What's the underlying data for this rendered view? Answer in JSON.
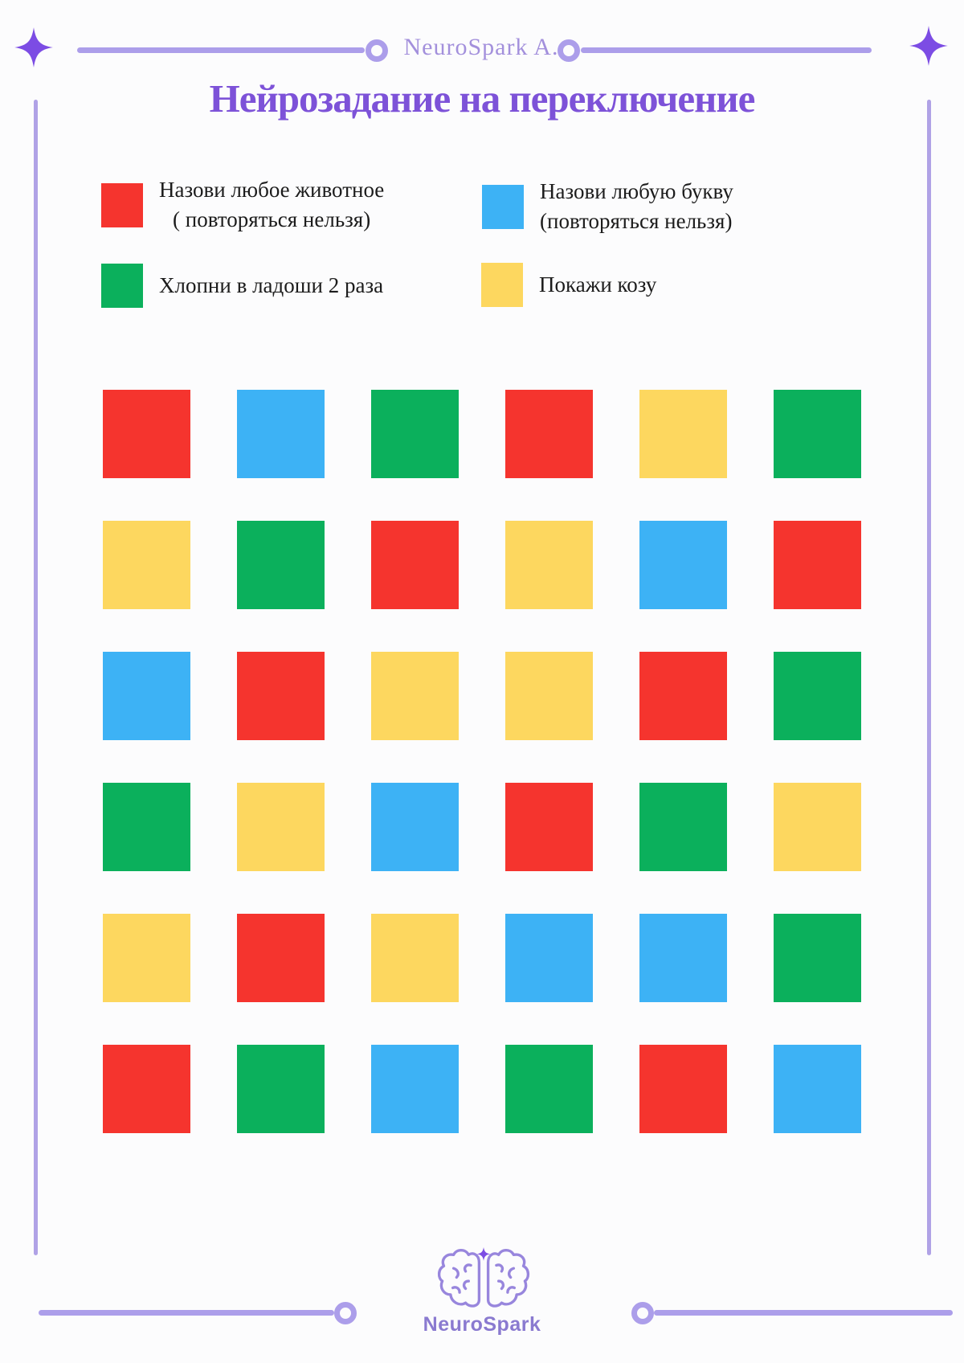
{
  "header": {
    "brand": "NeuroSpark A."
  },
  "title": "Нейрозадание на переключение",
  "colors": {
    "red": "#F5342E",
    "blue": "#3DB2F5",
    "green": "#0BB05C",
    "yellow": "#FDD75F",
    "accent_purple": "#7D52D8",
    "line_purple": "#AC9EEA",
    "frame_purple": "#B0A2E6",
    "sparkle_purple": "#7C4CE4",
    "header_text_purple": "#A390DC",
    "logo_purple": "#9886DD",
    "footer_text_purple": "#8A7AD0",
    "text_dark": "#1C1C1C"
  },
  "legend": {
    "items": [
      {
        "color": "red",
        "lines": [
          "Назови любое животное",
          "( повторяться нельзя)"
        ]
      },
      {
        "color": "blue",
        "lines": [
          "Назови любую букву",
          "(повторяться нельзя)"
        ]
      },
      {
        "color": "green",
        "lines": [
          "Хлопни в ладоши 2 раза"
        ]
      },
      {
        "color": "yellow",
        "lines": [
          "Покажи козу"
        ]
      }
    ]
  },
  "grid": {
    "rows": 6,
    "cols": 6,
    "cells": [
      [
        "red",
        "blue",
        "green",
        "red",
        "yellow",
        "green"
      ],
      [
        "yellow",
        "green",
        "red",
        "yellow",
        "blue",
        "red"
      ],
      [
        "blue",
        "red",
        "yellow",
        "yellow",
        "red",
        "green"
      ],
      [
        "green",
        "yellow",
        "blue",
        "red",
        "green",
        "yellow"
      ],
      [
        "yellow",
        "red",
        "yellow",
        "blue",
        "blue",
        "green"
      ],
      [
        "red",
        "green",
        "blue",
        "green",
        "red",
        "blue"
      ]
    ]
  },
  "footer": {
    "brand": "NeuroSpark"
  }
}
